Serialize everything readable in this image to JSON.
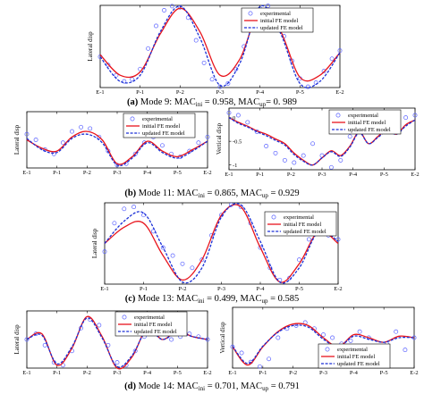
{
  "chart_data": [
    {
      "id": "mode9",
      "type": "line",
      "ylabel": "Lateral disp",
      "xticklabels": [
        "E-1",
        "P-1",
        "P-2",
        "P-3",
        "P-4",
        "P-5",
        "E-2"
      ],
      "ylim": [
        -1,
        1
      ],
      "legend_position": "top-right",
      "series": [
        {
          "name": "experimental",
          "style": "circle",
          "color": "#5b63ff",
          "x": [
            0,
            0.2,
            0.4,
            0.6,
            0.8,
            1.0,
            1.2,
            1.4,
            1.6,
            1.8,
            2.0,
            2.2,
            2.4,
            2.6,
            2.8,
            3.0,
            3.2,
            3.4,
            3.6,
            3.8,
            4.0,
            4.2,
            4.4,
            4.6,
            4.8,
            5.0,
            5.2,
            5.4,
            5.6,
            5.8,
            6.0
          ],
          "y": [
            -0.25,
            -0.45,
            -0.7,
            -0.85,
            -0.8,
            -0.55,
            -0.05,
            0.5,
            0.88,
            0.98,
            0.95,
            0.7,
            0.15,
            -0.4,
            -0.8,
            -0.98,
            -0.9,
            -0.55,
            0.0,
            0.55,
            0.92,
            0.99,
            0.75,
            0.25,
            -0.35,
            -0.78,
            -0.98,
            -0.88,
            -0.6,
            -0.3,
            -0.1
          ]
        },
        {
          "name": "initial FE model",
          "style": "solid",
          "color": "#e8141c",
          "x": [
            0,
            0.5,
            1.0,
            1.5,
            2.0,
            2.5,
            3.0,
            3.5,
            4.0,
            4.5,
            5.0,
            5.5,
            6.0
          ],
          "y": [
            -0.2,
            -0.7,
            -0.62,
            0.3,
            0.93,
            0.35,
            -0.7,
            -0.3,
            0.9,
            0.4,
            -0.75,
            -0.7,
            -0.15
          ]
        },
        {
          "name": "updated FE model",
          "style": "dashed",
          "color": "#1a2fd6",
          "x": [
            0,
            0.5,
            1.0,
            1.5,
            2.0,
            2.5,
            3.0,
            3.5,
            4.0,
            4.5,
            5.0,
            5.5,
            6.0
          ],
          "y": [
            -0.25,
            -0.85,
            -0.7,
            0.35,
            0.98,
            0.2,
            -0.95,
            -0.4,
            0.97,
            0.35,
            -0.9,
            -0.85,
            -0.15
          ]
        }
      ]
    },
    {
      "id": "mode11a",
      "type": "line",
      "ylabel": "Lateral disp",
      "xticklabels": [
        "E-1",
        "P-1",
        "P-2",
        "P-3",
        "P-4",
        "P-5",
        "E-2"
      ],
      "ylim": [
        -1,
        1
      ],
      "legend_position": "top-right",
      "series": [
        {
          "name": "experimental",
          "style": "circle",
          "color": "#5b63ff",
          "x": [
            0,
            0.3,
            0.6,
            0.9,
            1.2,
            1.5,
            1.8,
            2.1,
            2.4,
            2.7,
            3.0,
            3.3,
            3.6,
            3.9,
            4.2,
            4.5,
            4.8,
            5.1,
            5.4,
            5.7,
            6.0
          ],
          "y": [
            0.2,
            0.0,
            -0.35,
            -0.5,
            -0.1,
            0.3,
            0.45,
            0.4,
            0.1,
            -0.4,
            -0.9,
            -0.85,
            -0.5,
            -0.1,
            0.1,
            -0.2,
            -0.5,
            -0.6,
            -0.4,
            -0.1,
            0.1
          ]
        },
        {
          "name": "initial FE model",
          "style": "solid",
          "color": "#e8141c",
          "x": [
            0,
            0.5,
            1.0,
            1.5,
            2.0,
            2.5,
            3.0,
            3.5,
            4.0,
            4.5,
            5.0,
            5.5,
            6.0
          ],
          "y": [
            0.0,
            -0.3,
            -0.4,
            0.1,
            0.3,
            0.0,
            -0.85,
            -0.6,
            -0.05,
            -0.4,
            -0.6,
            -0.35,
            -0.05
          ]
        },
        {
          "name": "updated FE model",
          "style": "dashed",
          "color": "#1a2fd6",
          "x": [
            0,
            0.5,
            1.0,
            1.5,
            2.0,
            2.5,
            3.0,
            3.5,
            4.0,
            4.5,
            5.0,
            5.5,
            6.0
          ],
          "y": [
            0.05,
            -0.35,
            -0.45,
            0.05,
            0.2,
            -0.1,
            -0.9,
            -0.65,
            -0.1,
            -0.45,
            -0.65,
            -0.4,
            -0.05
          ]
        }
      ]
    },
    {
      "id": "mode11b",
      "type": "line",
      "ylabel": "Vertical disp",
      "yticklabels": [
        "0",
        "-0.5",
        "-1"
      ],
      "yticks": [
        0,
        -0.5,
        -1
      ],
      "xticklabels": [
        "E-1",
        "P-1",
        "P-2",
        "P-3",
        "P-4",
        "P-5",
        "E-2"
      ],
      "ylim": [
        -1.1,
        0.2
      ],
      "legend_position": "top-right",
      "series": [
        {
          "name": "experimental",
          "style": "circle",
          "color": "#5b63ff",
          "x": [
            0,
            0.3,
            0.6,
            0.9,
            1.2,
            1.5,
            1.8,
            2.1,
            2.4,
            2.7,
            3.0,
            3.3,
            3.6,
            3.9,
            4.2,
            4.5,
            4.8,
            5.1,
            5.4,
            5.7,
            6.0
          ],
          "y": [
            0.1,
            0.05,
            -0.1,
            -0.3,
            -0.6,
            -0.75,
            -0.9,
            -0.95,
            -0.8,
            -0.55,
            -0.8,
            -1.05,
            -0.9,
            -0.4,
            -0.05,
            0.05,
            0.1,
            0.1,
            0.05,
            0.0,
            0.05
          ]
        },
        {
          "name": "initial FE model",
          "style": "solid",
          "color": "#e8141c",
          "x": [
            0,
            0.3,
            0.6,
            0.9,
            1.2,
            1.5,
            1.8,
            2.1,
            2.4,
            2.7,
            3.0,
            3.3,
            3.6,
            3.9,
            4.2,
            4.5,
            4.8,
            5.1,
            5.4,
            5.7,
            6.0
          ],
          "y": [
            0.0,
            -0.1,
            -0.18,
            -0.28,
            -0.35,
            -0.45,
            -0.55,
            -0.75,
            -0.9,
            -1.0,
            -0.85,
            -0.7,
            -0.8,
            -0.6,
            -0.3,
            -0.55,
            -0.4,
            -0.25,
            -0.35,
            -0.15,
            -0.05
          ]
        },
        {
          "name": "updated FE model",
          "style": "dashed",
          "color": "#1a2fd6",
          "x": [
            0,
            0.3,
            0.6,
            0.9,
            1.2,
            1.5,
            1.8,
            2.1,
            2.4,
            2.7,
            3.0,
            3.3,
            3.6,
            3.9,
            4.2,
            4.5,
            4.8,
            5.1,
            5.4,
            5.7,
            6.0
          ],
          "y": [
            0.0,
            -0.12,
            -0.2,
            -0.3,
            -0.38,
            -0.48,
            -0.58,
            -0.78,
            -0.92,
            -1.0,
            -0.85,
            -0.72,
            -0.82,
            -0.62,
            -0.32,
            -0.55,
            -0.42,
            -0.28,
            -0.35,
            -0.18,
            -0.05
          ]
        }
      ]
    },
    {
      "id": "mode13",
      "type": "line",
      "ylabel": "Lateral disp",
      "xticklabels": [
        "E-1",
        "P-1",
        "P-2",
        "P-3",
        "P-4",
        "P-5",
        "E-2"
      ],
      "ylim": [
        -1,
        1
      ],
      "legend_position": "top-right",
      "series": [
        {
          "name": "experimental",
          "style": "circle",
          "color": "#5b63ff",
          "x": [
            0,
            0.25,
            0.5,
            0.75,
            1.0,
            1.25,
            1.5,
            1.75,
            2.0,
            2.25,
            2.5,
            2.75,
            3.0,
            3.25,
            3.5,
            3.75,
            4.0,
            4.25,
            4.5,
            4.75,
            5.0,
            5.25,
            5.5,
            5.75,
            6.0
          ],
          "y": [
            -0.2,
            0.5,
            0.85,
            0.9,
            0.7,
            0.3,
            -0.1,
            -0.3,
            -0.5,
            -0.6,
            -0.4,
            0.2,
            0.7,
            0.95,
            0.9,
            0.5,
            -0.1,
            -0.6,
            -0.9,
            -0.85,
            -0.4,
            0.1,
            0.35,
            0.2,
            0.1
          ]
        },
        {
          "name": "initial FE model",
          "style": "solid",
          "color": "#e8141c",
          "x": [
            0,
            0.5,
            1.0,
            1.5,
            2.0,
            2.5,
            3.0,
            3.5,
            4.0,
            4.5,
            5.0,
            5.5,
            6.0
          ],
          "y": [
            0.0,
            0.4,
            0.5,
            -0.3,
            -0.9,
            -0.4,
            0.7,
            0.9,
            -0.1,
            -0.95,
            -0.5,
            0.3,
            0.0
          ]
        },
        {
          "name": "updated FE model",
          "style": "dashed",
          "color": "#1a2fd6",
          "x": [
            0,
            0.5,
            1.0,
            1.5,
            2.0,
            2.5,
            3.0,
            3.5,
            4.0,
            4.5,
            5.0,
            5.5,
            6.0
          ],
          "y": [
            0.0,
            0.55,
            0.75,
            -0.1,
            -0.95,
            -0.6,
            0.65,
            0.95,
            0.05,
            -0.95,
            -0.6,
            0.3,
            0.05
          ]
        }
      ]
    },
    {
      "id": "mode14a",
      "type": "line",
      "ylabel": "Lateral disp",
      "xticklabels": [
        "E-1",
        "P-1",
        "P-2",
        "P-3",
        "P-4",
        "P-5",
        "E-2"
      ],
      "ylim": [
        -1,
        1
      ],
      "legend_position": "top-right",
      "series": [
        {
          "name": "experimental",
          "style": "circle",
          "color": "#5b63ff",
          "x": [
            0,
            0.3,
            0.6,
            0.9,
            1.2,
            1.5,
            1.8,
            2.1,
            2.4,
            2.7,
            3.0,
            3.3,
            3.6,
            3.9,
            4.2,
            4.5,
            4.8,
            5.1,
            5.4,
            5.7,
            6.0
          ],
          "y": [
            0.0,
            0.2,
            -0.2,
            -0.8,
            -0.9,
            -0.4,
            0.4,
            0.7,
            0.5,
            -0.2,
            -0.8,
            -0.9,
            -0.4,
            0.1,
            0.3,
            0.2,
            0.0,
            0.1,
            0.2,
            0.1,
            0.0
          ]
        },
        {
          "name": "initial FE model",
          "style": "solid",
          "color": "#e8141c",
          "x": [
            0,
            0.5,
            1.0,
            1.5,
            2.0,
            2.5,
            3.0,
            3.5,
            4.0,
            4.5,
            5.0,
            5.5,
            6.0
          ],
          "y": [
            0.0,
            0.2,
            -0.9,
            -0.3,
            0.8,
            0.1,
            -1.0,
            -0.6,
            0.4,
            0.0,
            0.3,
            0.1,
            0.0
          ]
        },
        {
          "name": "updated FE model",
          "style": "dashed",
          "color": "#1a2fd6",
          "x": [
            0,
            0.5,
            1.0,
            1.5,
            2.0,
            2.5,
            3.0,
            3.5,
            4.0,
            4.5,
            5.0,
            5.5,
            6.0
          ],
          "y": [
            0.0,
            0.15,
            -0.85,
            -0.25,
            0.75,
            0.05,
            -0.95,
            -0.55,
            0.35,
            0.0,
            0.25,
            0.1,
            0.0
          ]
        }
      ]
    },
    {
      "id": "mode14b",
      "type": "line",
      "ylabel": "Vertical disp",
      "xticklabels": [
        "E-1",
        "P-1",
        "P-2",
        "P-3",
        "P-4",
        "P-5",
        "E-2"
      ],
      "ylim": [
        -1,
        1
      ],
      "legend_position": "bottom-right",
      "series": [
        {
          "name": "experimental",
          "style": "circle",
          "color": "#5b63ff",
          "x": [
            0,
            0.3,
            0.6,
            0.9,
            1.2,
            1.5,
            1.8,
            2.1,
            2.4,
            2.7,
            3.0,
            3.3,
            3.6,
            3.9,
            4.2,
            4.5,
            4.8,
            5.1,
            5.4,
            5.7,
            6.0
          ],
          "y": [
            -0.3,
            -0.5,
            -0.8,
            -0.95,
            -0.7,
            0.0,
            0.3,
            0.4,
            0.5,
            0.3,
            0.1,
            0.0,
            -0.2,
            -0.1,
            0.2,
            0.0,
            -0.3,
            -0.2,
            0.2,
            -0.4,
            0.0
          ]
        },
        {
          "name": "initial FE model",
          "style": "solid",
          "color": "#e8141c",
          "x": [
            0,
            0.5,
            1.0,
            1.5,
            2.0,
            2.5,
            3.0,
            3.5,
            4.0,
            4.5,
            5.0,
            5.5,
            6.0
          ],
          "y": [
            -0.3,
            -0.9,
            -0.3,
            0.2,
            0.45,
            0.4,
            0.0,
            -0.3,
            0.1,
            0.0,
            -0.15,
            0.05,
            0.0
          ]
        },
        {
          "name": "updated FE model",
          "style": "dashed",
          "color": "#1a2fd6",
          "x": [
            0,
            0.5,
            1.0,
            1.5,
            2.0,
            2.5,
            3.0,
            3.5,
            4.0,
            4.5,
            5.0,
            5.5,
            6.0
          ],
          "y": [
            -0.28,
            -0.85,
            -0.28,
            0.18,
            0.4,
            0.35,
            -0.05,
            -0.3,
            0.05,
            -0.05,
            -0.15,
            0.0,
            0.0
          ]
        }
      ]
    }
  ],
  "captions": [
    {
      "letter": "(a)",
      "pre": " Mode 9: MAC",
      "sub1": "ini",
      "mid": " = 0.958, MAC",
      "sub2": "up",
      "post": "= 0. 989"
    },
    {
      "letter": "(b)",
      "pre": " Mode 11: MAC",
      "sub1": "ini",
      "mid": " = 0.865, MAC",
      "sub2": "up",
      "post": " = 0.929"
    },
    {
      "letter": "(c)",
      "pre": " Mode 13: MAC",
      "sub1": "ini",
      "mid": " = 0.499, MAC",
      "sub2": "up",
      "post": " = 0.585"
    },
    {
      "letter": "(d)",
      "pre": " Mode 14: MAC",
      "sub1": "ini",
      "mid": " = 0.701, MAC",
      "sub2": "up",
      "post": " = 0.791"
    }
  ]
}
